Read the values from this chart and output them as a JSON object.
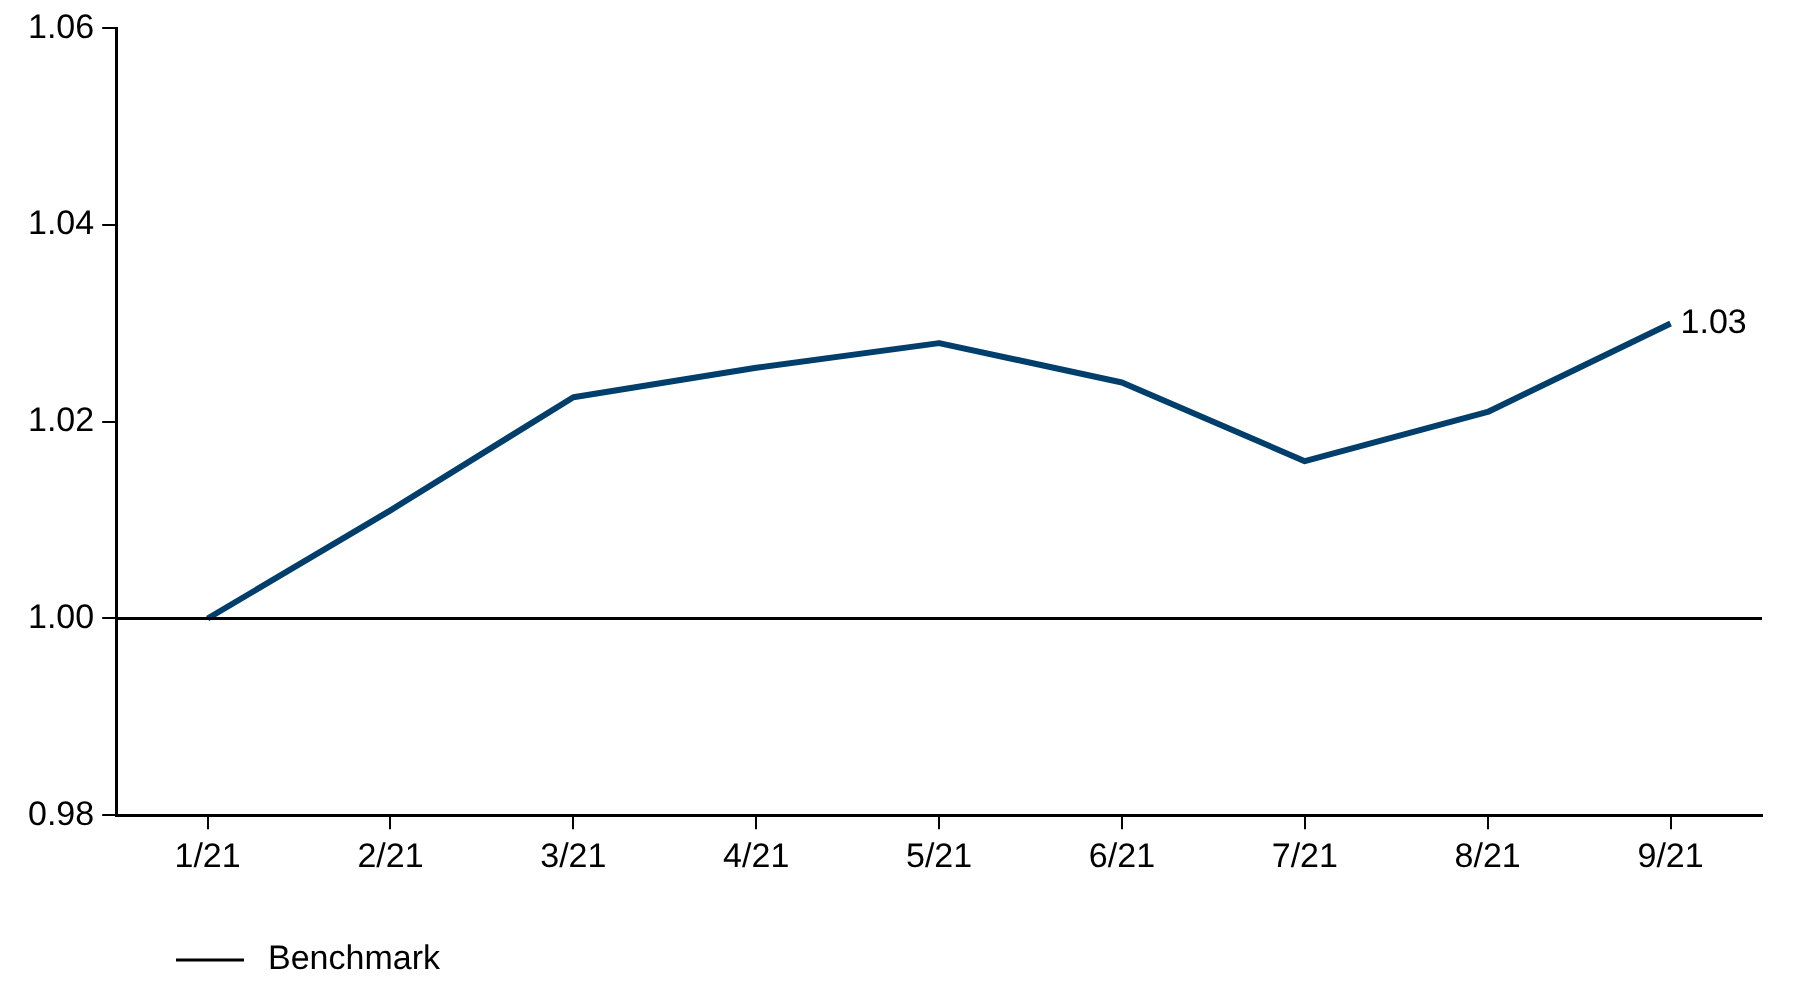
{
  "chart_data": {
    "type": "line",
    "categories": [
      "1/21",
      "2/21",
      "3/21",
      "4/21",
      "5/21",
      "6/21",
      "7/21",
      "8/21",
      "9/21"
    ],
    "series": [
      {
        "color": "#003e6b",
        "values": [
          1.0,
          1.011,
          1.0225,
          1.0255,
          1.028,
          1.024,
          1.016,
          1.021,
          1.03
        ]
      }
    ],
    "ylim": [
      0.98,
      1.06
    ],
    "yticks": [
      {
        "value": 0.98,
        "label": "0.98"
      },
      {
        "value": 1.0,
        "label": "1.00"
      },
      {
        "value": 1.02,
        "label": "1.02"
      },
      {
        "value": 1.04,
        "label": "1.04"
      },
      {
        "value": 1.06,
        "label": "1.06"
      }
    ],
    "ref_lines": [
      {
        "axis": "y",
        "value": 1.0,
        "label": "Benchmark",
        "color": "#000000"
      }
    ],
    "annotations": [
      {
        "text": "1.03",
        "x": "9/21",
        "y": 1.03
      }
    ],
    "grid": false,
    "legend": "bottom left",
    "marker": "none",
    "line_style": "solid"
  }
}
